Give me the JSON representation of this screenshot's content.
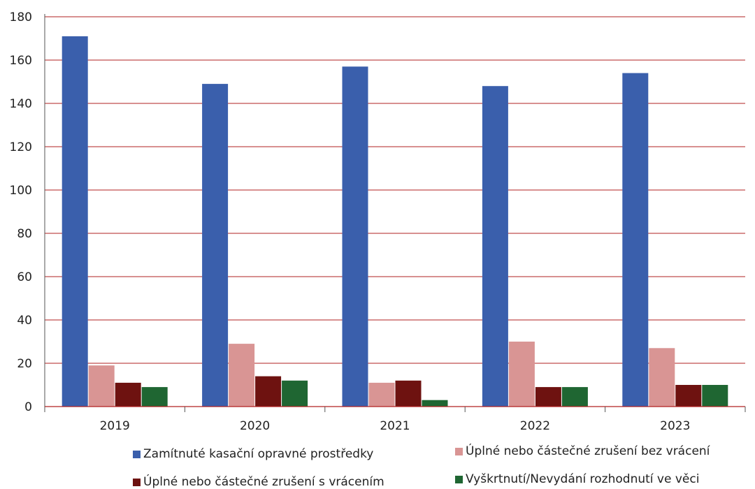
{
  "chart_data": {
    "type": "bar",
    "categories": [
      "2019",
      "2020",
      "2021",
      "2022",
      "2023"
    ],
    "ylim": [
      0,
      180
    ],
    "yticks": [
      0,
      20,
      40,
      60,
      80,
      100,
      120,
      140,
      160,
      180
    ],
    "grid": true,
    "series": [
      {
        "name": "Zamítnuté kasační opravné prostředky",
        "color": "#3A5FAC",
        "values": [
          171,
          149,
          157,
          148,
          154
        ]
      },
      {
        "name": "Úplné nebo částečné zrušení bez vrácení",
        "color": "#D99594",
        "values": [
          19,
          29,
          11,
          30,
          27
        ]
      },
      {
        "name": "Úplné nebo částečné zrušení s vrácením",
        "color": "#6E1210",
        "values": [
          11,
          14,
          12,
          9,
          10
        ]
      },
      {
        "name": "Vyškrtnutí/Nevydání rozhodnutí ve věci",
        "color": "#1F6632",
        "values": [
          9,
          12,
          3,
          9,
          10
        ]
      }
    ],
    "gridColor": "#B22222"
  }
}
